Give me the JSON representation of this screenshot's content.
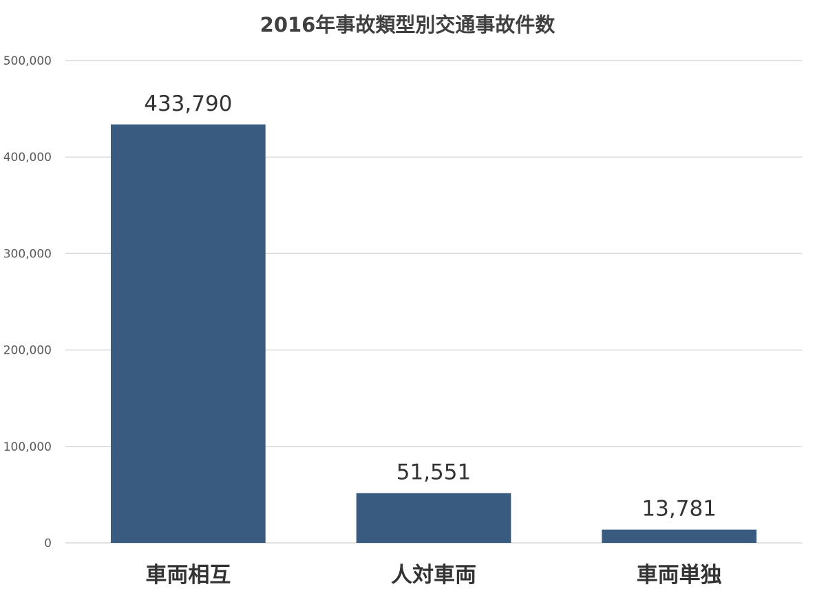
{
  "chart_data": {
    "type": "bar",
    "title": "2016年事故類型別交通事故件数",
    "categories": [
      "車両相互",
      "人対車両",
      "車両単独"
    ],
    "values": [
      433790,
      51551,
      13781
    ],
    "data_labels": [
      "433,790",
      "51,551",
      "13,781"
    ],
    "ylim": [
      0,
      500000
    ],
    "y_ticks": [
      0,
      100000,
      200000,
      300000,
      400000,
      500000
    ],
    "y_tick_labels": [
      "0",
      "100,000",
      "200,000",
      "300,000",
      "400,000",
      "500,000"
    ],
    "xlabel": "",
    "ylabel": "",
    "grid": true,
    "legend": "none",
    "bar_color": "#3a5b80"
  }
}
